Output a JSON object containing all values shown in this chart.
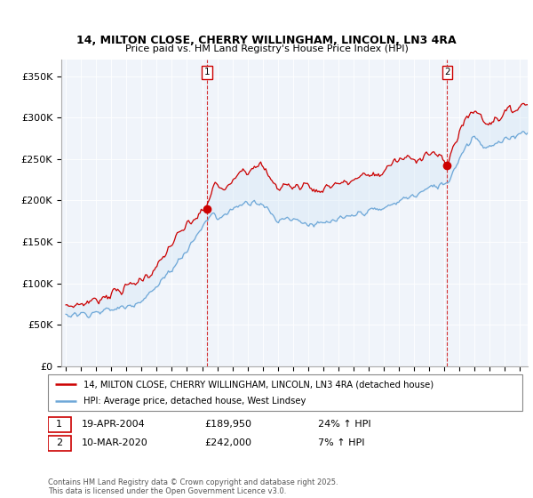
{
  "title_line1": "14, MILTON CLOSE, CHERRY WILLINGHAM, LINCOLN, LN3 4RA",
  "title_line2": "Price paid vs. HM Land Registry's House Price Index (HPI)",
  "sale1_date": "19-APR-2004",
  "sale1_price": 189950,
  "sale1_hpi": "24% ↑ HPI",
  "sale2_date": "10-MAR-2020",
  "sale2_price": 242000,
  "sale2_hpi": "7% ↑ HPI",
  "legend_line1": "14, MILTON CLOSE, CHERRY WILLINGHAM, LINCOLN, LN3 4RA (detached house)",
  "legend_line2": "HPI: Average price, detached house, West Lindsey",
  "footer": "Contains HM Land Registry data © Crown copyright and database right 2025.\nThis data is licensed under the Open Government Licence v3.0.",
  "hpi_color": "#6fa8d8",
  "fill_color": "#d0e4f5",
  "price_color": "#cc0000",
  "vline_color": "#cc0000",
  "ylim": [
    0,
    370000
  ],
  "yticks": [
    0,
    50000,
    100000,
    150000,
    200000,
    250000,
    300000,
    350000
  ],
  "sale1_year": 2004.3,
  "sale2_year": 2020.19,
  "start_year": 1995,
  "end_year": 2025.5,
  "bg_color": "#f0f4fa"
}
